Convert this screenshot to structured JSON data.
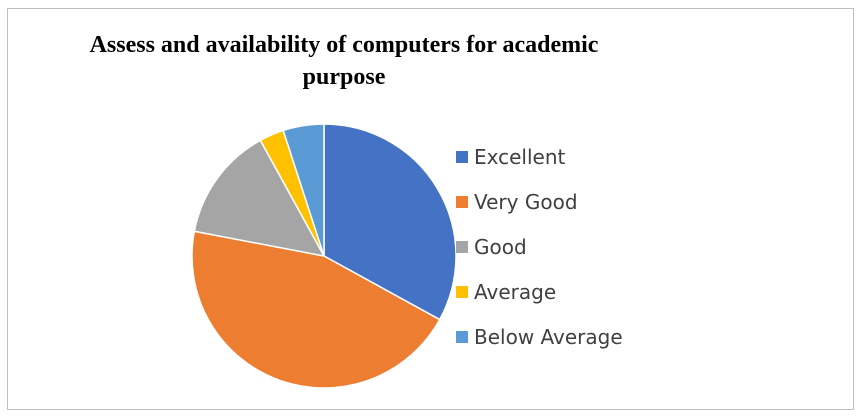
{
  "chart_data": {
    "type": "pie",
    "title": "Assess and availability of computers for academic purpose",
    "title_lines": [
      "Assess and availability of computers for academic",
      "purpose"
    ],
    "categories": [
      "Excellent",
      "Very Good",
      "Good",
      "Average",
      "Below Average"
    ],
    "values": [
      33,
      45,
      14,
      3,
      5
    ],
    "colors": [
      "#4472c4",
      "#ed7d31",
      "#a5a5a5",
      "#ffc000",
      "#5b9bd5"
    ],
    "legend_position": "right",
    "start_angle": "12 o'clock",
    "direction": "clockwise"
  }
}
